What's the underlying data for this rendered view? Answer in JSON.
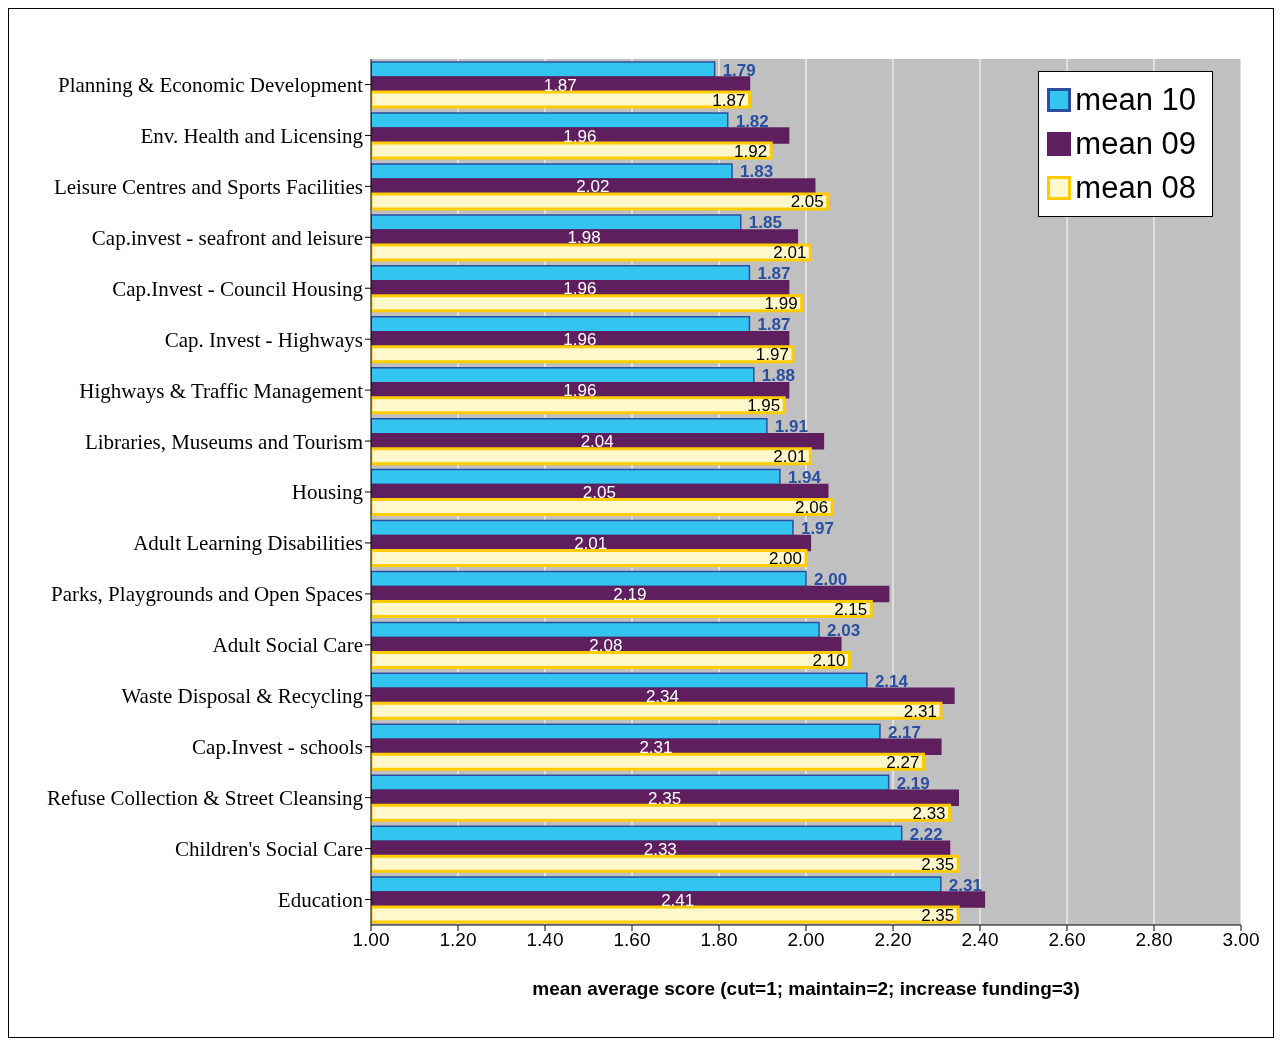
{
  "chart_data": {
    "type": "bar",
    "orientation": "horizontal",
    "xlabel": "mean average score (cut=1; maintain=2; increase funding=3)",
    "categories": [
      "Planning & Economic Development",
      "Env. Health and Licensing",
      "Leisure Centres and Sports Facilities",
      "Cap.invest - seafront and leisure",
      "Cap.Invest - Council Housing",
      "Cap. Invest - Highways",
      "Highways & Traffic Management",
      "Libraries, Museums and Tourism",
      "Housing",
      "Adult Learning Disabilities",
      "Parks, Playgrounds and Open Spaces",
      "Adult Social Care",
      "Waste Disposal & Recycling",
      "Cap.Invest - schools",
      "Refuse Collection & Street Cleansing",
      "Children's Social Care",
      "Education"
    ],
    "series": [
      {
        "name": "mean 10",
        "color": "#33c4f0",
        "values": [
          1.79,
          1.82,
          1.83,
          1.85,
          1.87,
          1.87,
          1.88,
          1.91,
          1.94,
          1.97,
          2.0,
          2.03,
          2.14,
          2.17,
          2.19,
          2.22,
          2.31
        ],
        "value_labels": [
          "1.79",
          "1.82",
          "1.83",
          "1.85",
          "1.87",
          "1.87",
          "1.88",
          "1.91",
          "1.94",
          "1.97",
          "2.00",
          "2.03",
          "2.14",
          "2.17",
          "2.19",
          "2.22",
          "2.31"
        ]
      },
      {
        "name": "mean 09",
        "color": "#5f1f5f",
        "values": [
          1.87,
          1.96,
          2.02,
          1.98,
          1.96,
          1.96,
          1.96,
          2.04,
          2.05,
          2.01,
          2.19,
          2.08,
          2.34,
          2.31,
          2.35,
          2.33,
          2.41
        ],
        "value_labels": [
          "1.87",
          "1.96",
          "2.02",
          "1.98",
          "1.96",
          "1.96",
          "1.96",
          "2.04",
          "2.05",
          "2.01",
          "2.19",
          "2.08",
          "2.34",
          "2.31",
          "2.35",
          "2.33",
          "2.41"
        ]
      },
      {
        "name": "mean 08",
        "color": "#ffcc00",
        "values": [
          1.87,
          1.92,
          2.05,
          2.01,
          1.99,
          1.97,
          1.95,
          2.01,
          2.06,
          2.0,
          2.15,
          2.1,
          2.31,
          2.27,
          2.33,
          2.35,
          2.35
        ],
        "value_labels": [
          "1.87",
          "1.92",
          "2.05",
          "2.01",
          "1.99",
          "1.97",
          "1.95",
          "2.01",
          "2.06",
          "2.00",
          "2.15",
          "2.10",
          "2.31",
          "2.27",
          "2.33",
          "2.35",
          "2.35"
        ]
      }
    ],
    "xlim": [
      1.0,
      3.0
    ],
    "xticks": [
      {
        "value": 1.0,
        "label": "1.00"
      },
      {
        "value": 1.2,
        "label": "1.20"
      },
      {
        "value": 1.4,
        "label": "1.40"
      },
      {
        "value": 1.6,
        "label": "1.60"
      },
      {
        "value": 1.8,
        "label": "1.80"
      },
      {
        "value": 2.0,
        "label": "2.00"
      },
      {
        "value": 2.2,
        "label": "2.20"
      },
      {
        "value": 2.4,
        "label": "2.40"
      },
      {
        "value": 2.6,
        "label": "2.60"
      },
      {
        "value": 2.8,
        "label": "2.80"
      },
      {
        "value": 3.0,
        "label": "3.00"
      }
    ],
    "grid": "x",
    "legend": "top right"
  }
}
